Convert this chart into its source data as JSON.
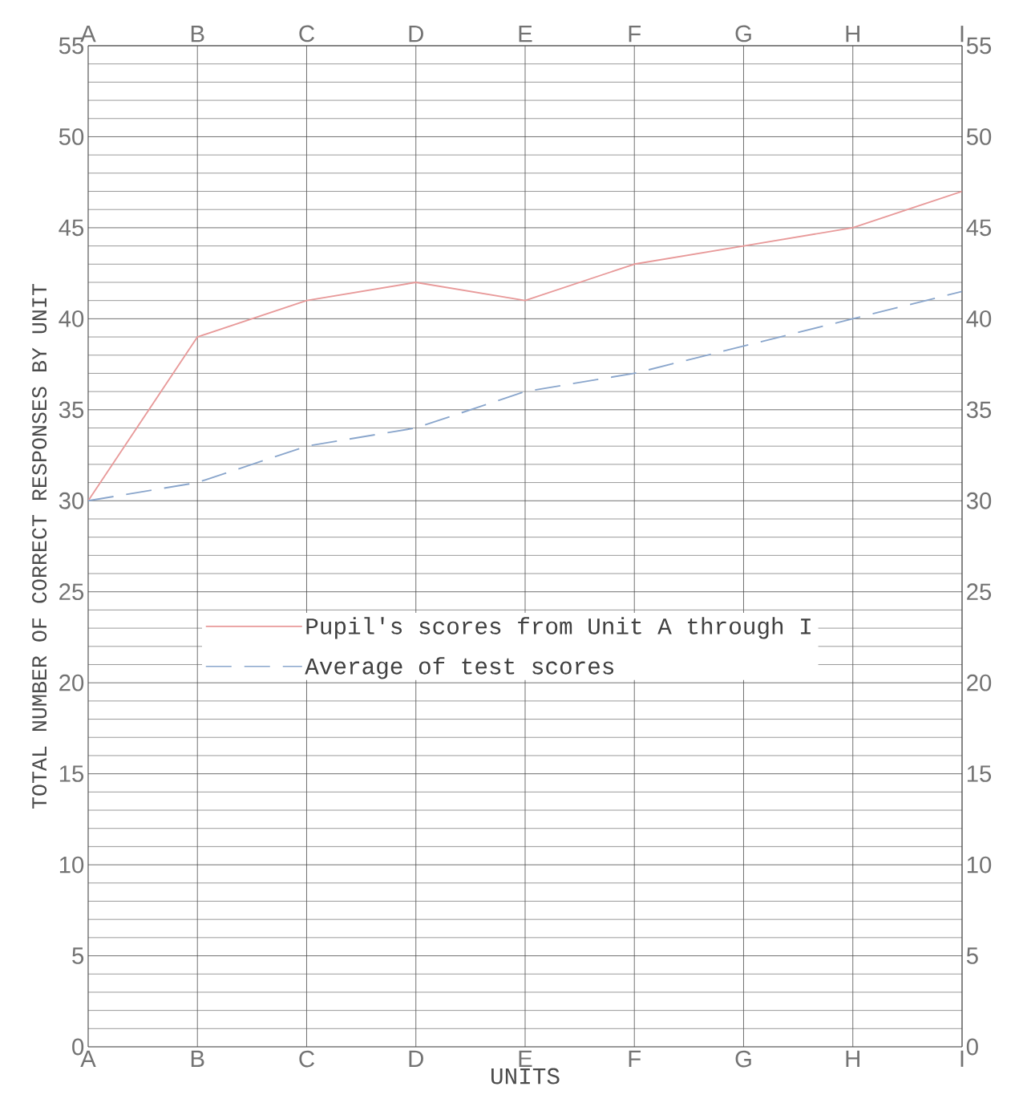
{
  "chart_data": {
    "type": "line",
    "xlabel": "UNITS",
    "ylabel": "TOTAL NUMBER OF CORRECT RESPONSES BY UNIT",
    "categories": [
      "A",
      "B",
      "C",
      "D",
      "E",
      "F",
      "G",
      "H",
      "I"
    ],
    "series": [
      {
        "name": "Pupil's scores from Unit A through I",
        "color": "#e89a9a",
        "line_style": "solid",
        "values": [
          30,
          39,
          41,
          42,
          41,
          43,
          44,
          45,
          47
        ]
      },
      {
        "name": "Average of test scores",
        "color": "#8aa6cc",
        "line_style": "dashed",
        "values": [
          30,
          31,
          33,
          34,
          36,
          37,
          38.5,
          40,
          41.5
        ]
      }
    ],
    "ylim": [
      0,
      55
    ],
    "yticks": [
      0,
      5,
      10,
      15,
      20,
      25,
      30,
      35,
      40,
      45,
      50,
      55
    ],
    "y2lim": [
      0,
      55
    ],
    "y2ticks": [
      0,
      5,
      10,
      15,
      20,
      25,
      30,
      35,
      40,
      45,
      50,
      55
    ],
    "grid": true,
    "legend": "center left",
    "marker": "none"
  }
}
